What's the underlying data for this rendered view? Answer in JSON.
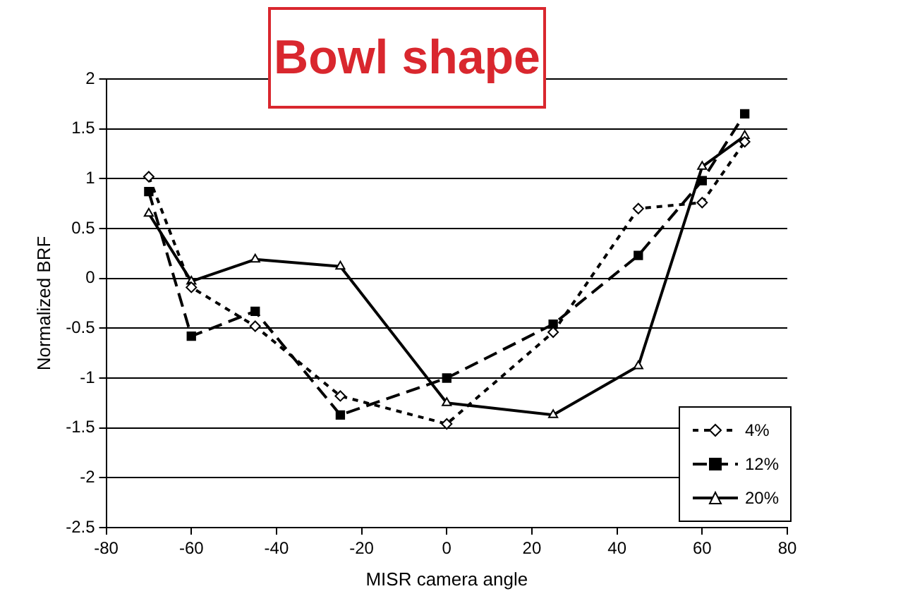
{
  "chart_data": {
    "type": "line",
    "title": "Bowl shape",
    "xlabel": "MISR camera angle",
    "ylabel": "Normalized BRF",
    "xlim": [
      -80,
      80
    ],
    "xticks": [
      -80,
      -60,
      -40,
      -20,
      0,
      20,
      40,
      60,
      80
    ],
    "ylim": [
      -2.5,
      2
    ],
    "yticks": [
      -2.5,
      -2,
      -1.5,
      -1,
      -0.5,
      0,
      0.5,
      1,
      1.5,
      2
    ],
    "grid": "y",
    "legend": "bottom right",
    "series": [
      {
        "name": "4%",
        "color": "#000000",
        "marker": "diamond",
        "line_style": "dotted",
        "x": [
          -70,
          -60,
          -45,
          -25,
          0,
          25,
          45,
          60,
          70
        ],
        "values": [
          1.02,
          -0.09,
          -0.48,
          -1.18,
          -1.46,
          -0.54,
          0.7,
          0.76,
          1.37
        ]
      },
      {
        "name": "12%",
        "color": "#000000",
        "marker": "square",
        "line_style": "dashed",
        "x": [
          -70,
          -60,
          -45,
          -25,
          0,
          25,
          45,
          60,
          70
        ],
        "values": [
          0.87,
          -0.58,
          -0.33,
          -1.37,
          -1.0,
          -0.46,
          0.23,
          0.98,
          1.65
        ]
      },
      {
        "name": "20%",
        "color": "#000000",
        "marker": "triangle",
        "line_style": "solid",
        "x": [
          -70,
          -60,
          -45,
          -25,
          0,
          25,
          45,
          60,
          70
        ],
        "values": [
          0.65,
          -0.03,
          0.19,
          0.12,
          -1.25,
          -1.37,
          -0.88,
          1.12,
          1.43
        ]
      }
    ]
  }
}
